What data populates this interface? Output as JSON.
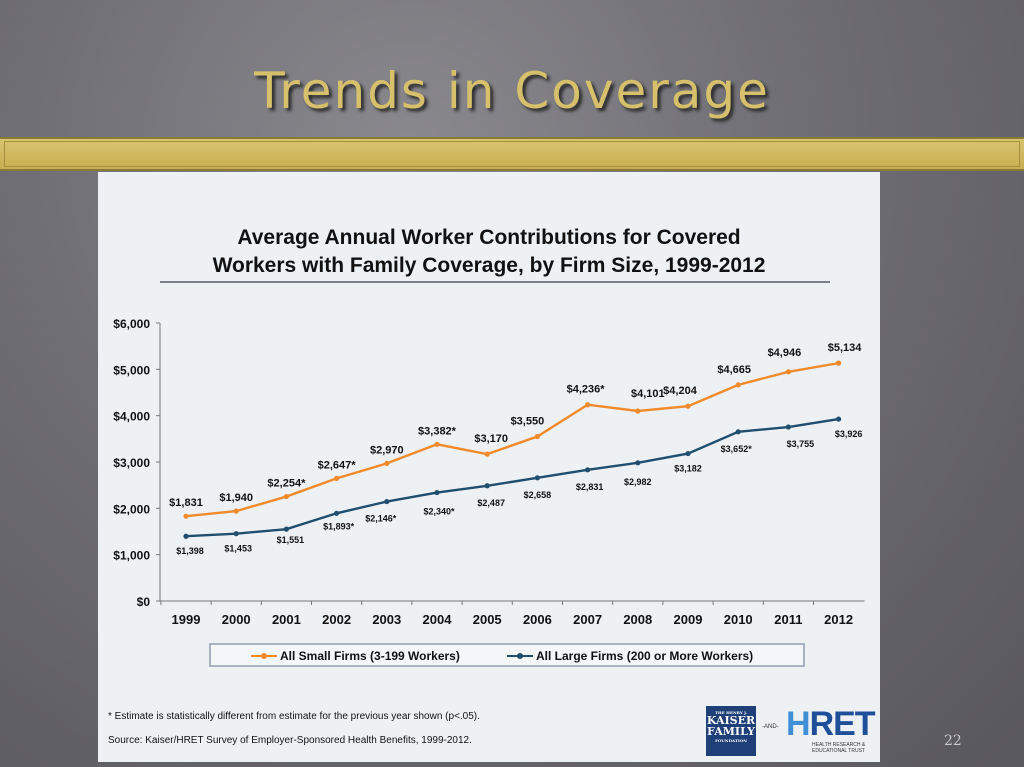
{
  "slide": {
    "title": "Trends in Coverage",
    "number": "22"
  },
  "chart_data": {
    "type": "line",
    "title": "Average Annual Worker Contributions for Covered Workers with Family Coverage, by Firm Size, 1999-2012",
    "title_lines": [
      "Average Annual Worker Contributions for Covered",
      "Workers with Family Coverage, by Firm Size, 1999-2012"
    ],
    "xlabel": "",
    "ylabel": "",
    "ylim": [
      0,
      6000
    ],
    "yticks": [
      0,
      1000,
      2000,
      3000,
      4000,
      5000,
      6000
    ],
    "ytick_labels": [
      "$0",
      "$1,000",
      "$2,000",
      "$3,000",
      "$4,000",
      "$5,000",
      "$6,000"
    ],
    "categories": [
      "1999",
      "2000",
      "2001",
      "2002",
      "2003",
      "2004",
      "2005",
      "2006",
      "2007",
      "2008",
      "2009",
      "2010",
      "2011",
      "2012"
    ],
    "grid": false,
    "legend_position": "bottom",
    "series": [
      {
        "name": "All Small Firms (3-199 Workers)",
        "color": "#f08a2a",
        "values": [
          1831,
          1940,
          2254,
          2647,
          2970,
          3382,
          3170,
          3550,
          4236,
          4101,
          4204,
          4665,
          4946,
          5134
        ],
        "labels": [
          "$1,831",
          "$1,940",
          "$2,254*",
          "$2,647*",
          "$2,970",
          "$3,382*",
          "$3,170",
          "$3,550",
          "$4,236*",
          "$4,101",
          "$4,204",
          "$4,665",
          "$4,946",
          "$5,134"
        ]
      },
      {
        "name": "All Large Firms (200 or More Workers)",
        "color": "#1f4e6e",
        "values": [
          1398,
          1453,
          1551,
          1893,
          2146,
          2340,
          2487,
          2658,
          2831,
          2982,
          3182,
          3652,
          3755,
          3926
        ],
        "labels": [
          "$1,398",
          "$1,453",
          "$1,551",
          "$1,893*",
          "$2,146*",
          "$2,340*",
          "$2,487",
          "$2,658",
          "$2,831",
          "$2,982",
          "$3,182",
          "$3,652*",
          "$3,755",
          "$3,926"
        ]
      }
    ],
    "footnote": "* Estimate is statistically different from estimate for the previous year shown (p<.05).",
    "source": "Source:  Kaiser/HRET Survey of Employer-Sponsored Health Benefits, 1999-2012."
  },
  "logos": {
    "kff_top": "THE HENRY J.",
    "kff_line1": "KAISER",
    "kff_line2": "FAMILY",
    "kff_bottom": "FOUNDATION",
    "and": "-AND-",
    "hret_h": "H",
    "hret_rest": "RET",
    "hret_sub1": "HEALTH RESEARCH &",
    "hret_sub2": "EDUCATIONAL TRUST"
  }
}
